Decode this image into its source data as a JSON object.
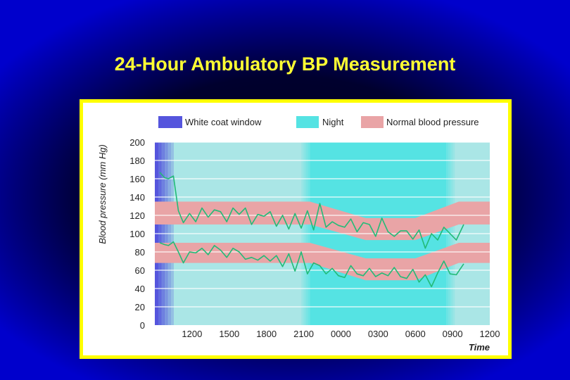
{
  "slide": {
    "title": "24-Hour Ambulatory BP Measurement"
  },
  "colors": {
    "background": "#0000cc",
    "title": "#ffff33",
    "panel_border": "#ffff00",
    "white_coat": "#5555dd",
    "night": "#55e3e3",
    "day": "#aae6e6",
    "normal_bp": "#e9a4a6",
    "line": "#22bb77"
  },
  "chart_data": {
    "type": "line",
    "title": "",
    "ylabel": "Blood pressure (mm Hg)",
    "xlabel": "Time",
    "ylim": [
      0,
      200
    ],
    "yticks": [
      0,
      20,
      40,
      60,
      80,
      100,
      120,
      140,
      160,
      180,
      200
    ],
    "xlim": [
      9,
      36
    ],
    "xticks": [
      {
        "h": 12,
        "label": "1200"
      },
      {
        "h": 15,
        "label": "1500"
      },
      {
        "h": 18,
        "label": "1800"
      },
      {
        "h": 21,
        "label": "2100"
      },
      {
        "h": 24,
        "label": "0000"
      },
      {
        "h": 27,
        "label": "0300"
      },
      {
        "h": 30,
        "label": "0600"
      },
      {
        "h": 33,
        "label": "0900"
      },
      {
        "h": 36,
        "label": "1200"
      }
    ],
    "legend": [
      {
        "key": "white_coat",
        "label": "White coat window"
      },
      {
        "key": "night",
        "label": "Night"
      },
      {
        "key": "normal_bp",
        "label": "Normal blood pressure"
      }
    ],
    "regions": {
      "white_coat": [
        9,
        10.5
      ],
      "night": [
        21.5,
        32.5
      ]
    },
    "normal_bands": [
      {
        "name": "systolic",
        "points": [
          [
            9,
            135,
            110
          ],
          [
            21.5,
            135,
            110
          ],
          [
            26,
            117,
            93
          ],
          [
            30,
            117,
            93
          ],
          [
            33.5,
            135,
            110
          ],
          [
            36,
            135,
            110
          ]
        ]
      },
      {
        "name": "diastolic",
        "points": [
          [
            9,
            90,
            68
          ],
          [
            21.5,
            90,
            68
          ],
          [
            26,
            73,
            49
          ],
          [
            30,
            73,
            49
          ],
          [
            33.5,
            90,
            68
          ],
          [
            36,
            90,
            68
          ]
        ]
      }
    ],
    "series": [
      {
        "x": [
          9.4,
          9.8,
          10.1,
          10.5,
          10.9,
          11.3,
          11.8,
          12.3,
          12.8,
          13.3,
          13.8,
          14.3,
          14.8,
          15.3,
          15.8,
          16.3,
          16.8,
          17.3,
          17.8,
          18.3,
          18.8,
          19.3,
          19.8,
          20.3,
          20.8,
          21.3,
          21.8,
          22.3,
          22.8,
          23.3,
          23.8,
          24.3,
          24.8,
          25.3,
          25.8,
          26.3,
          26.8,
          27.3,
          27.8,
          28.3,
          28.8,
          29.3,
          29.8,
          30.3,
          30.8,
          31.3,
          31.8,
          32.3,
          32.8,
          33.3,
          33.9
        ],
        "y": [
          167,
          161,
          160,
          163,
          125,
          112,
          122,
          113,
          128,
          118,
          126,
          124,
          113,
          128,
          121,
          128,
          110,
          121,
          119,
          124,
          108,
          120,
          105,
          122,
          106,
          125,
          104,
          133,
          107,
          113,
          109,
          107,
          116,
          102,
          112,
          110,
          97,
          117,
          102,
          97,
          103,
          103,
          94,
          104,
          84,
          100,
          93,
          107,
          100,
          93,
          110
        ]
      },
      {
        "x": [
          9.4,
          9.8,
          10.1,
          10.5,
          10.9,
          11.3,
          11.8,
          12.3,
          12.8,
          13.3,
          13.8,
          14.3,
          14.8,
          15.3,
          15.8,
          16.3,
          16.8,
          17.3,
          17.8,
          18.3,
          18.8,
          19.3,
          19.8,
          20.3,
          20.8,
          21.3,
          21.8,
          22.3,
          22.8,
          23.3,
          23.8,
          24.3,
          24.8,
          25.3,
          25.8,
          26.3,
          26.8,
          27.3,
          27.8,
          28.3,
          28.8,
          29.3,
          29.8,
          30.3,
          30.8,
          31.3,
          31.8,
          32.3,
          32.8,
          33.3,
          33.9
        ],
        "y": [
          90,
          88,
          87,
          91,
          80,
          68,
          80,
          79,
          84,
          77,
          87,
          82,
          74,
          84,
          80,
          72,
          74,
          71,
          76,
          70,
          76,
          64,
          78,
          59,
          80,
          56,
          68,
          65,
          56,
          62,
          54,
          52,
          65,
          56,
          54,
          62,
          53,
          57,
          54,
          63,
          53,
          51,
          61,
          47,
          55,
          42,
          57,
          70,
          56,
          55,
          67
        ]
      }
    ]
  }
}
